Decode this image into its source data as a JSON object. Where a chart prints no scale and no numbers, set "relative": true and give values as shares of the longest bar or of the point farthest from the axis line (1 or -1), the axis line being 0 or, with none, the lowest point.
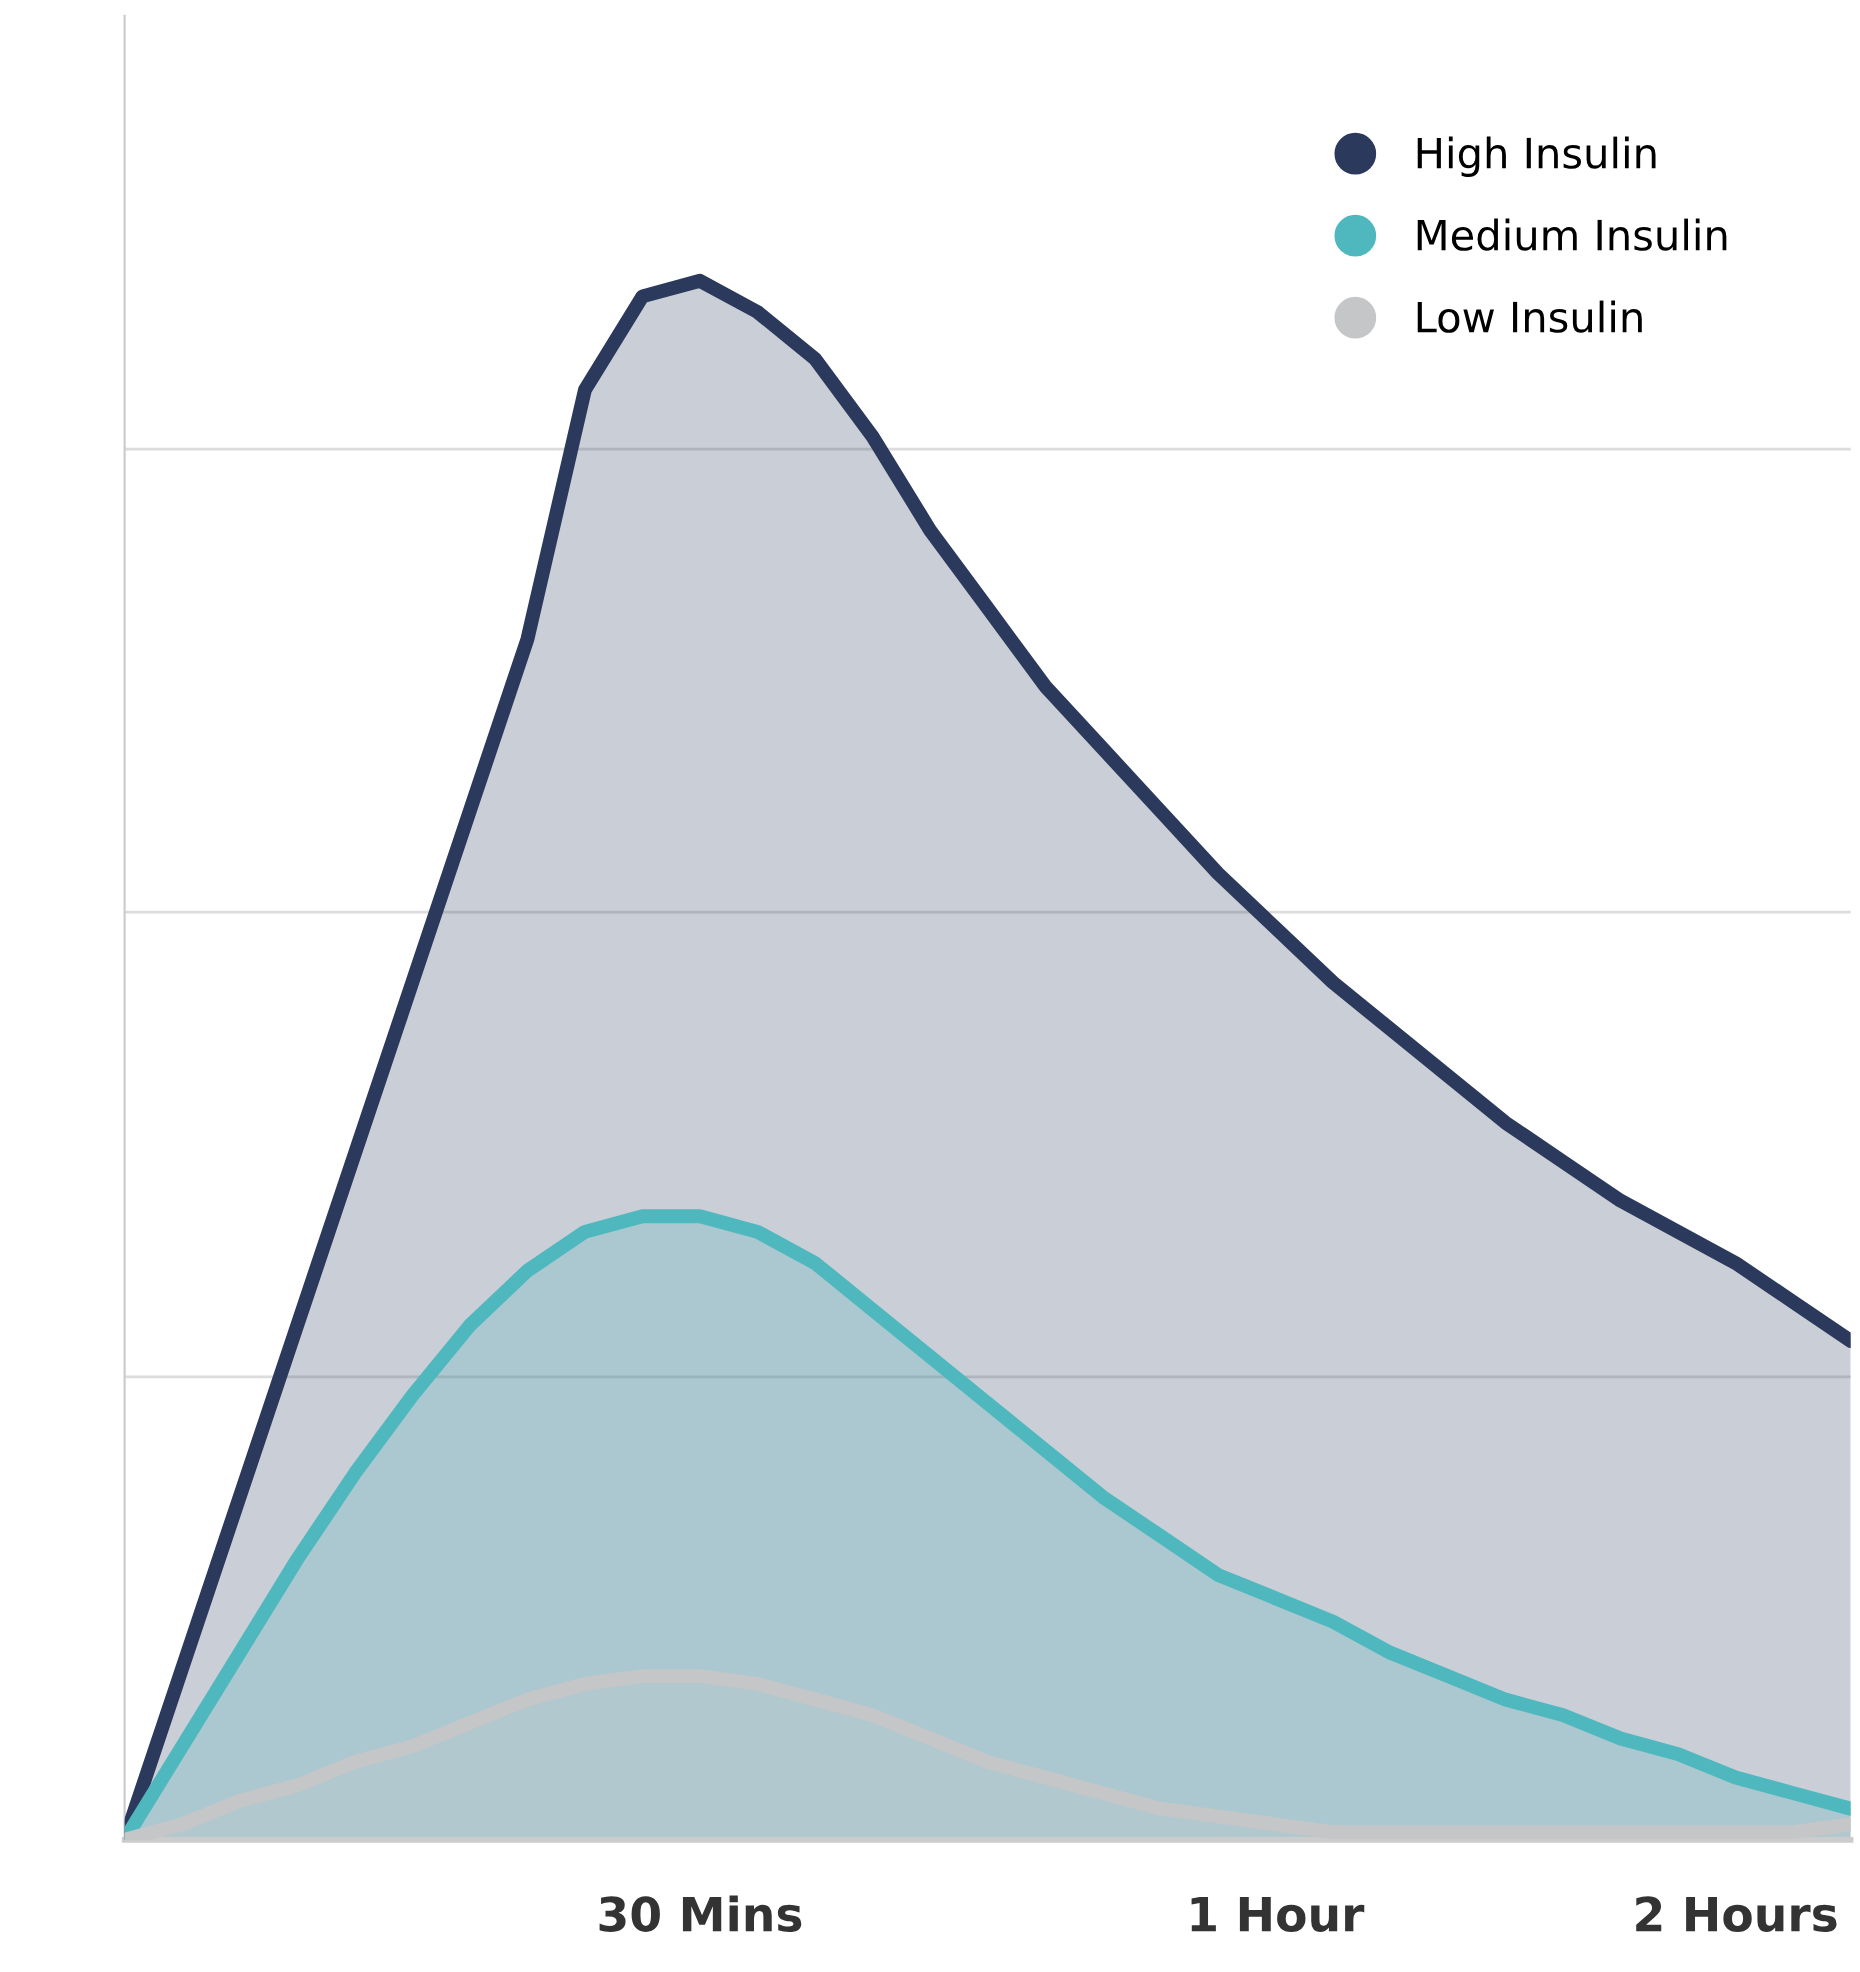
{
  "chart_data": {
    "type": "area",
    "relative": true,
    "legend": "top right",
    "marker": "none",
    "line_style": "solid",
    "categories": [
      null,
      null,
      null,
      null,
      null,
      null,
      null,
      null,
      null,
      null,
      "30 Mins",
      null,
      null,
      null,
      null,
      null,
      null,
      null,
      null,
      null,
      "1 Hour",
      null,
      null,
      null,
      null,
      null,
      null,
      null,
      "2 Hours",
      null,
      null
    ],
    "ref_lines": [
      {
        "axis": "y",
        "value": 0.297,
        "color": "#dcdcdc"
      },
      {
        "axis": "y",
        "value": 0.595,
        "color": "#dcdcdc"
      },
      {
        "axis": "y",
        "value": 0.892,
        "color": "#dcdcdc"
      }
    ],
    "series": [
      {
        "name": "High Insulin",
        "color": "#2b3a5c",
        "values": [
          0,
          0.11,
          0.22,
          0.33,
          0.44,
          0.55,
          0.66,
          0.77,
          0.93,
          0.99,
          1.0,
          0.98,
          0.95,
          0.9,
          0.84,
          0.79,
          0.74,
          0.7,
          0.66,
          0.62,
          0.585,
          0.55,
          0.52,
          0.49,
          0.46,
          0.435,
          0.41,
          0.39,
          0.37,
          0.345,
          0.32
        ]
      },
      {
        "name": "Medium Insulin",
        "color": "#4fb8bf",
        "values": [
          0,
          0.06,
          0.12,
          0.18,
          0.235,
          0.285,
          0.33,
          0.365,
          0.39,
          0.4,
          0.4,
          0.39,
          0.37,
          0.34,
          0.31,
          0.28,
          0.25,
          0.22,
          0.195,
          0.17,
          0.155,
          0.14,
          0.12,
          0.105,
          0.09,
          0.08,
          0.065,
          0.055,
          0.04,
          0.03,
          0.02
        ]
      },
      {
        "name": "Low Insulin",
        "color": "#c4c6c8",
        "values": [
          0,
          0.01,
          0.025,
          0.035,
          0.05,
          0.06,
          0.075,
          0.09,
          0.1,
          0.105,
          0.105,
          0.1,
          0.09,
          0.08,
          0.065,
          0.05,
          0.04,
          0.03,
          0.02,
          0.015,
          0.01,
          0.005,
          0.005,
          0.005,
          0.005,
          0.005,
          0.005,
          0.005,
          0.005,
          0.005,
          0.01
        ]
      }
    ]
  }
}
